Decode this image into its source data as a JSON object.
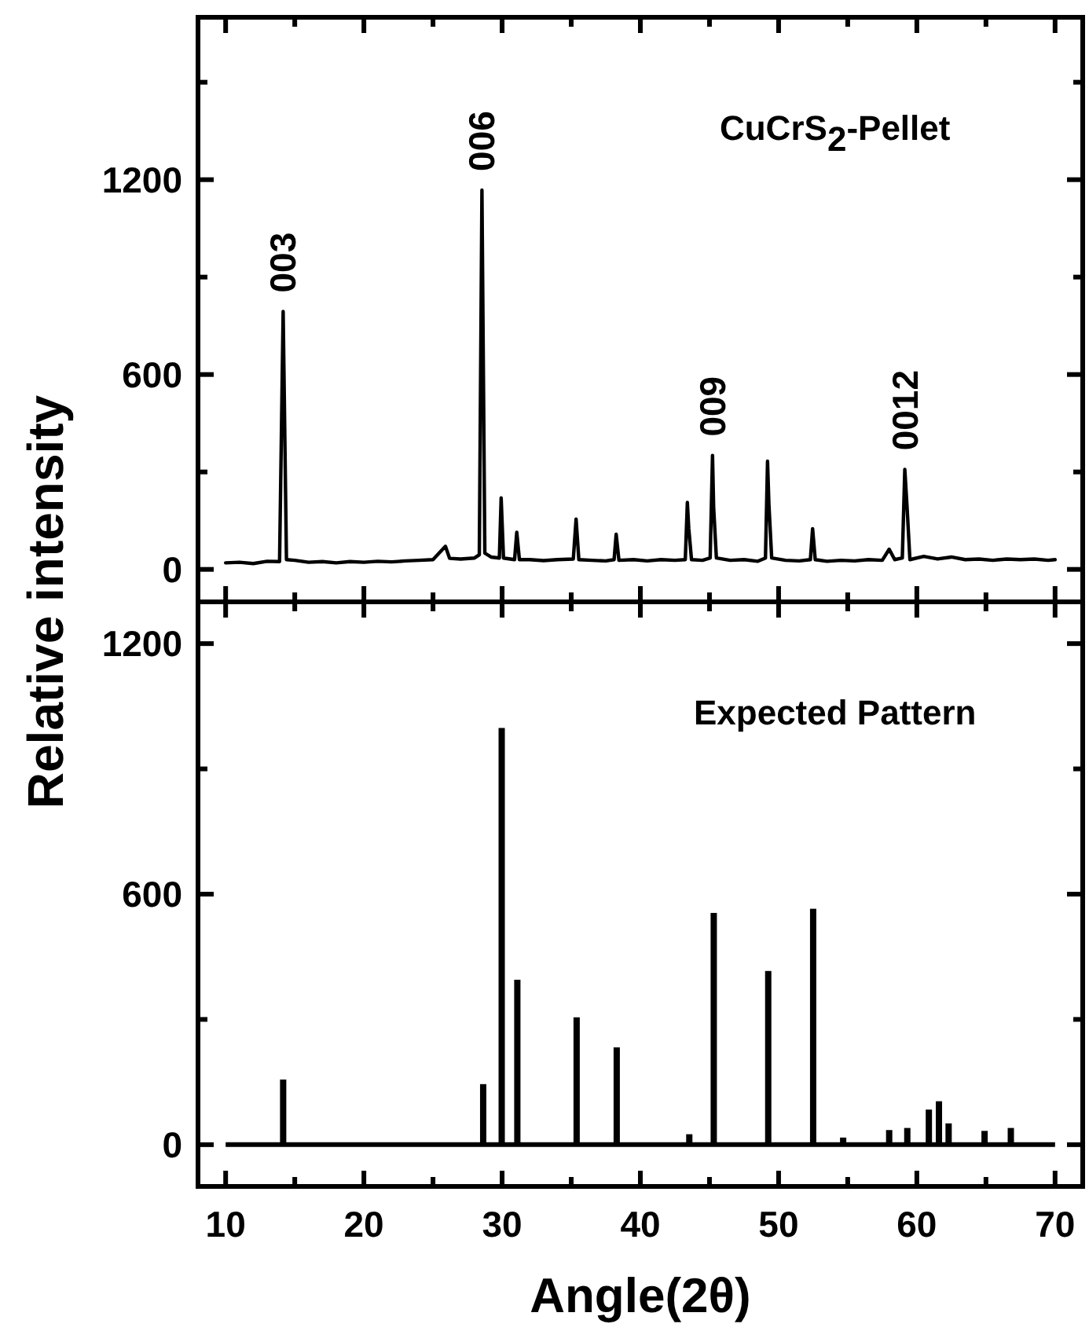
{
  "chart_data": [
    {
      "type": "line",
      "title": "CuCrS$_{2}$-Pellet",
      "ylabel": "Relative intensity",
      "xlim": [
        8,
        72
      ],
      "ylim": [
        -100,
        1700
      ],
      "xticks": [
        {
          "value": 10,
          "label": null
        },
        {
          "value": 15,
          "label": null
        },
        {
          "value": 20,
          "label": null
        },
        {
          "value": 25,
          "label": null
        },
        {
          "value": 30,
          "label": null
        },
        {
          "value": 35,
          "label": null
        },
        {
          "value": 40,
          "label": null
        },
        {
          "value": 45,
          "label": null
        },
        {
          "value": 50,
          "label": null
        },
        {
          "value": 55,
          "label": null
        },
        {
          "value": 60,
          "label": null
        },
        {
          "value": 65,
          "label": null
        },
        {
          "value": 70,
          "label": null
        }
      ],
      "yticks": [
        0,
        {
          "value": 300,
          "label": null
        },
        600,
        {
          "value": 900,
          "label": null
        },
        1200,
        {
          "value": 1500,
          "label": null
        }
      ],
      "tick_labels": "y",
      "line_style": "solid",
      "series": [
        {
          "color": "#000000",
          "x": [
            10,
            11,
            12,
            13,
            13.9,
            14.16,
            14.4,
            15,
            16,
            17,
            18,
            19,
            20,
            21,
            22,
            23,
            24,
            25,
            25.9,
            26.2,
            27,
            28,
            28.35,
            28.54,
            28.75,
            29.2,
            29.8,
            29.93,
            30.1,
            30.9,
            31.06,
            31.25,
            32,
            33,
            34,
            35.15,
            35.35,
            35.55,
            36.5,
            37.5,
            38.1,
            38.25,
            38.45,
            39.5,
            40.5,
            41.5,
            42.5,
            43.25,
            43.4,
            43.5,
            43.7,
            44.5,
            45.05,
            45.22,
            45.3,
            45.5,
            46.5,
            47.5,
            48.5,
            49.05,
            49.2,
            49.3,
            49.5,
            50.5,
            51.5,
            52.3,
            52.46,
            52.65,
            53.5,
            54.5,
            55.5,
            56.5,
            57.5,
            58,
            58.4,
            58.95,
            59.13,
            59.3,
            59.5,
            60.5,
            61.5,
            62.5,
            63.5,
            64.5,
            65.5,
            66.5,
            67.5,
            68.5,
            69.5,
            70
          ],
          "values": [
            20,
            22,
            18,
            25,
            24,
            794,
            30,
            28,
            22,
            24,
            20,
            24,
            22,
            25,
            23,
            26,
            28,
            30,
            71,
            34,
            32,
            35,
            45,
            1168,
            50,
            38,
            35,
            220,
            35,
            30,
            114,
            30,
            30,
            27,
            30,
            32,
            155,
            30,
            28,
            26,
            30,
            108,
            28,
            30,
            26,
            30,
            28,
            30,
            206,
            127,
            30,
            28,
            35,
            351,
            192,
            35,
            28,
            30,
            25,
            35,
            333,
            200,
            35,
            28,
            26,
            30,
            125,
            30,
            25,
            28,
            26,
            30,
            28,
            62,
            30,
            35,
            308,
            187,
            30,
            40,
            32,
            38,
            30,
            32,
            28,
            32,
            30,
            32,
            28,
            30
          ]
        }
      ],
      "annotations": [
        {
          "text": "003",
          "x": 14.16,
          "y": 794
        },
        {
          "text": "006",
          "x": 28.54,
          "y": 1168
        },
        {
          "text": "009",
          "x": 45.22,
          "y": 351
        },
        {
          "text": "0012",
          "x": 59.13,
          "y": 308
        }
      ]
    },
    {
      "type": "bar",
      "title": "Expected Pattern",
      "xlabel": "Angle(2θ)",
      "xlim": [
        8,
        72
      ],
      "ylim": [
        -100,
        1300
      ],
      "xticks": [
        10,
        {
          "value": 15,
          "label": null
        },
        20,
        {
          "value": 25,
          "label": null
        },
        30,
        {
          "value": 35,
          "label": null
        },
        40,
        {
          "value": 45,
          "label": null
        },
        50,
        {
          "value": 55,
          "label": null
        },
        60,
        {
          "value": 65,
          "label": null
        },
        70
      ],
      "yticks": [
        0,
        {
          "value": 300,
          "label": null
        },
        600,
        {
          "value": 900,
          "label": null
        },
        1200
      ],
      "x": [
        14.16,
        28.63,
        29.97,
        31.1,
        35.39,
        38.29,
        43.54,
        45.31,
        49.25,
        52.5,
        54.67,
        58.0,
        59.31,
        60.87,
        61.6,
        62.3,
        64.9,
        66.8
      ],
      "values": [
        156,
        145,
        998,
        395,
        305,
        233,
        25,
        555,
        416,
        565,
        17,
        35,
        40,
        84,
        104,
        51,
        33,
        40
      ],
      "color": "#000000",
      "ref_lines": [
        {
          "axis": "y",
          "value": 0,
          "color": "#000000"
        }
      ]
    }
  ]
}
